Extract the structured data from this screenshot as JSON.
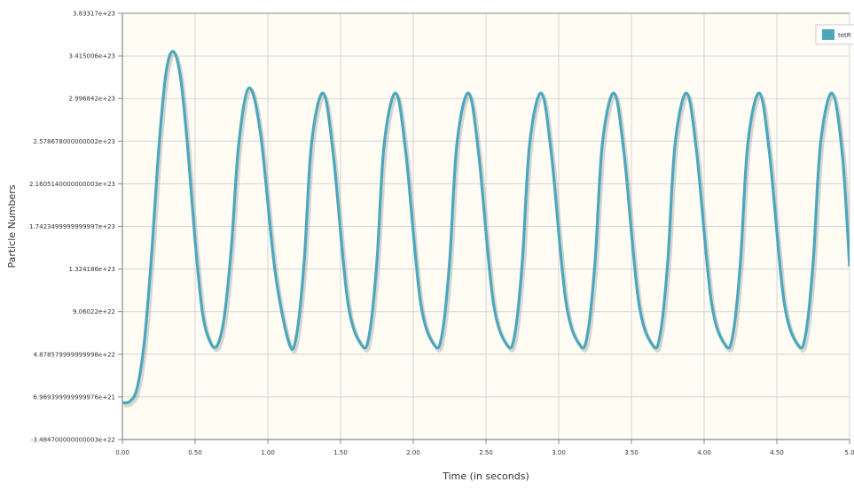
{
  "chart_data": {
    "type": "line",
    "xlabel": "Time (in seconds)",
    "ylabel": "Particle Numbers",
    "x_ticks": [
      "0.00",
      "0.50",
      "1.00",
      "1.50",
      "2.00",
      "2.50",
      "3.00",
      "3.50",
      "4.00",
      "4.50",
      "5.0"
    ],
    "y_ticks": [
      "3.83317e+23",
      "3.415006e+23",
      "2.996842e+23",
      "2.578678000000002e+23",
      "2.1605140000000003e+23",
      "1.7423499999999997e+23",
      "1.324186e+23",
      "9.06022e+22",
      "4.878579999999998e+22",
      "6.969399999999976e+21",
      "-3.484700000000003e+22"
    ],
    "xlim": [
      0,
      5.0
    ],
    "ylim": [
      -3.4847e+22,
      3.83317e+23
    ],
    "grid": true,
    "legend_position": "top-right",
    "series": [
      {
        "name": "tetR",
        "color": "#4ba8bc",
        "x": [
          0.0,
          0.05,
          0.1,
          0.15,
          0.2,
          0.25,
          0.3,
          0.35,
          0.4,
          0.45,
          0.5,
          0.55,
          0.6,
          0.65,
          0.7,
          0.75,
          0.8,
          0.87,
          0.95,
          1.05,
          1.15,
          1.2,
          1.25,
          1.3,
          1.38,
          1.45,
          1.55,
          1.65,
          1.7,
          1.75,
          1.8,
          1.88,
          1.95,
          2.05,
          2.15,
          2.2,
          2.25,
          2.3,
          2.38,
          2.45,
          2.55,
          2.65,
          2.7,
          2.75,
          2.8,
          2.88,
          2.95,
          3.05,
          3.15,
          3.2,
          3.25,
          3.3,
          3.38,
          3.45,
          3.55,
          3.65,
          3.7,
          3.75,
          3.8,
          3.88,
          3.95,
          4.05,
          4.15,
          4.2,
          4.25,
          4.3,
          4.38,
          4.45,
          4.55,
          4.65,
          4.7,
          4.75,
          4.8,
          4.88,
          4.95,
          5.0
        ],
        "values": [
          1.2e+21,
          2.5e+21,
          1.5e+22,
          6e+22,
          1.45e+23,
          2.5e+23,
          3.25e+23,
          3.46e+23,
          3.2e+23,
          2.5e+23,
          1.6e+23,
          9e+22,
          6.2e+22,
          5.7e+22,
          8.5e+22,
          1.55e+23,
          2.55e+23,
          3.1e+23,
          2.65e+23,
          1.3e+23,
          5.8e+22,
          7e+22,
          1.4e+23,
          2.55e+23,
          3.05e+23,
          2.45e+23,
          1e+23,
          5.7e+22,
          7e+22,
          1.4e+23,
          2.55e+23,
          3.05e+23,
          2.45e+23,
          1e+23,
          5.7e+22,
          7e+22,
          1.4e+23,
          2.55e+23,
          3.05e+23,
          2.45e+23,
          1e+23,
          5.7e+22,
          7e+22,
          1.4e+23,
          2.55e+23,
          3.05e+23,
          2.45e+23,
          1e+23,
          5.7e+22,
          7e+22,
          1.4e+23,
          2.55e+23,
          3.05e+23,
          2.45e+23,
          1e+23,
          5.7e+22,
          7e+22,
          1.4e+23,
          2.55e+23,
          3.05e+23,
          2.45e+23,
          1e+23,
          5.7e+22,
          7e+22,
          1.4e+23,
          2.55e+23,
          3.05e+23,
          2.45e+23,
          1e+23,
          5.7e+22,
          7e+22,
          1.4e+23,
          2.55e+23,
          3.05e+23,
          2.45e+23,
          1.35e+23
        ]
      }
    ]
  },
  "style": {
    "plot_background": "#fffcf3",
    "grid_color": "#d4d4d4",
    "axis_color": "#888888",
    "line_color": "#4ba8bc",
    "line_shadow": "#b5b5b5"
  }
}
